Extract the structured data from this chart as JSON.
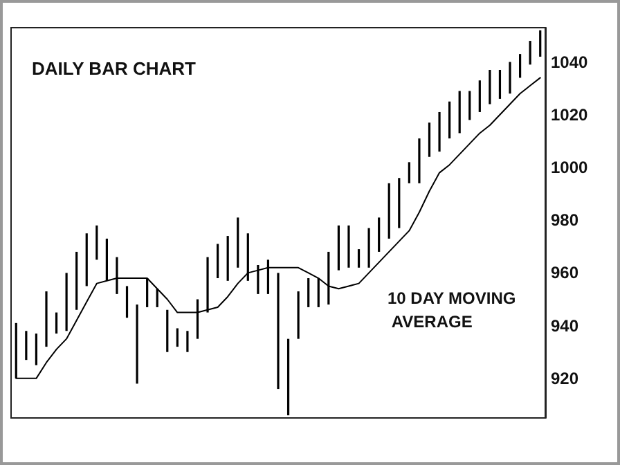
{
  "chart_data": {
    "type": "bar",
    "title": "DAILY BAR CHART",
    "annotations": [
      "10 DAY MOVING AVERAGE"
    ],
    "categories": [
      null,
      null,
      null,
      null,
      null,
      null,
      null,
      null,
      null,
      null,
      null,
      null,
      null,
      null,
      null,
      null,
      null,
      null,
      null,
      null,
      null,
      null,
      null,
      null,
      null,
      null,
      null,
      null,
      null,
      null,
      null,
      null,
      null,
      null,
      null,
      null,
      null,
      null,
      null,
      null,
      null,
      null,
      null,
      null,
      null,
      null,
      null,
      null,
      null,
      null,
      null,
      null,
      null
    ],
    "series": [
      {
        "color": "#000000",
        "base": [
          920,
          927,
          925,
          932,
          937,
          938,
          946,
          955,
          965,
          957,
          952,
          943,
          918,
          947,
          947,
          930,
          932,
          930,
          935,
          945,
          958,
          957,
          962,
          957,
          952,
          952,
          916,
          906,
          935,
          947,
          947,
          948,
          961,
          962,
          962,
          962,
          968,
          973,
          977,
          994,
          994,
          1004,
          1006,
          1011,
          1013,
          1018,
          1021,
          1024,
          1026,
          1028,
          1034,
          1039,
          1042
        ],
        "values": [
          21,
          11,
          12,
          21,
          8,
          22,
          22,
          20,
          13,
          16,
          14,
          12,
          30,
          11,
          7,
          16,
          7,
          8,
          15,
          21,
          13,
          17,
          19,
          18,
          11,
          13,
          44,
          29,
          18,
          11,
          11,
          20,
          17,
          16,
          7,
          15,
          13,
          21,
          19,
          8,
          17,
          13,
          15,
          14,
          16,
          11,
          12,
          13,
          11,
          12,
          9,
          9,
          10
        ]
      },
      {
        "type": "line",
        "color": "#000000",
        "values": [
          920,
          920,
          920,
          926,
          931,
          935,
          942,
          949,
          956,
          957,
          958,
          958,
          958,
          958,
          954,
          950,
          945,
          945,
          945,
          946,
          947,
          951,
          956,
          960,
          961,
          962,
          962,
          962,
          962,
          960,
          958,
          955,
          954,
          955,
          956,
          960,
          964,
          968,
          972,
          976,
          983,
          991,
          998,
          1001,
          1005,
          1009,
          1013,
          1016,
          1020,
          1024,
          1028,
          1031,
          1034
        ]
      }
    ],
    "ylim": [
      905,
      1053
    ],
    "yticks": [
      920,
      940,
      960,
      980,
      1000,
      1020,
      1040
    ],
    "grid": false,
    "tick_labels": "y",
    "line_style": "solid"
  }
}
